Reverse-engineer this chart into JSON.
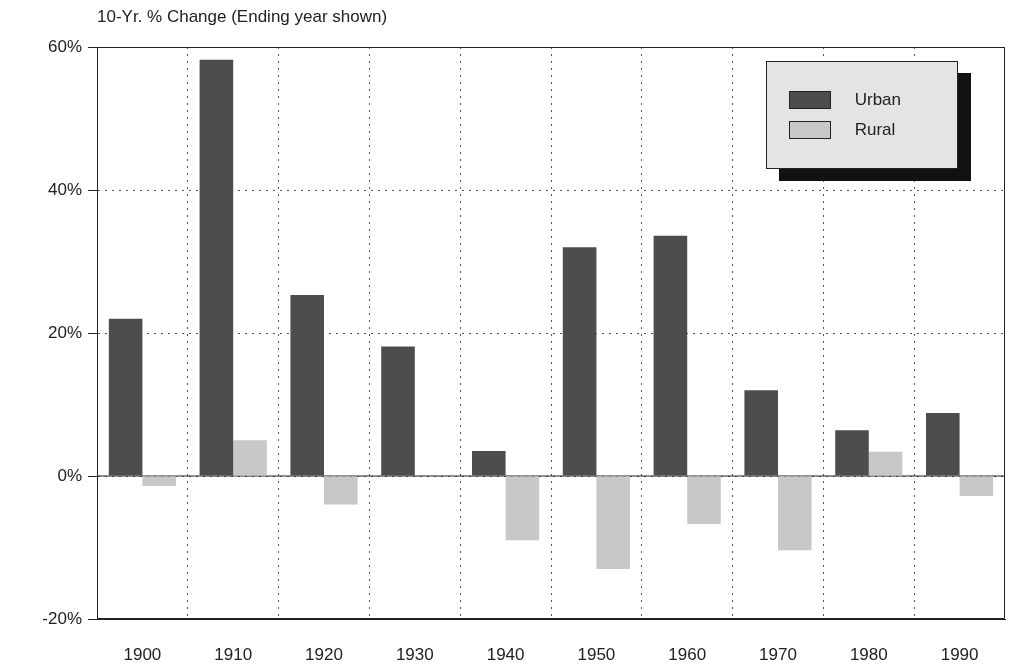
{
  "chart_data": {
    "type": "bar",
    "title": "10-Yr. % Change (Ending year shown)",
    "categories": [
      "1900",
      "1910",
      "1920",
      "1930",
      "1940",
      "1950",
      "1960",
      "1970",
      "1980",
      "1990"
    ],
    "series": [
      {
        "name": "Urban",
        "color": "#4d4d4d",
        "values": [
          22,
          58.2,
          25.3,
          18.1,
          3.5,
          32,
          33.6,
          12,
          6.4,
          8.8
        ]
      },
      {
        "name": "Rural",
        "color": "#c8c8c8",
        "values": [
          -1.4,
          5,
          -4,
          0,
          -9,
          -13,
          -6.7,
          -10.4,
          3.4,
          -2.8
        ]
      }
    ],
    "ylim": [
      -20,
      60
    ],
    "yticks": [
      {
        "value": -20,
        "label": "-20%"
      },
      {
        "value": 0,
        "label": "0%"
      },
      {
        "value": 20,
        "label": "20%"
      },
      {
        "value": 40,
        "label": "40%"
      },
      {
        "value": 60,
        "label": "60%"
      }
    ],
    "grid": true,
    "legend": "top right"
  }
}
